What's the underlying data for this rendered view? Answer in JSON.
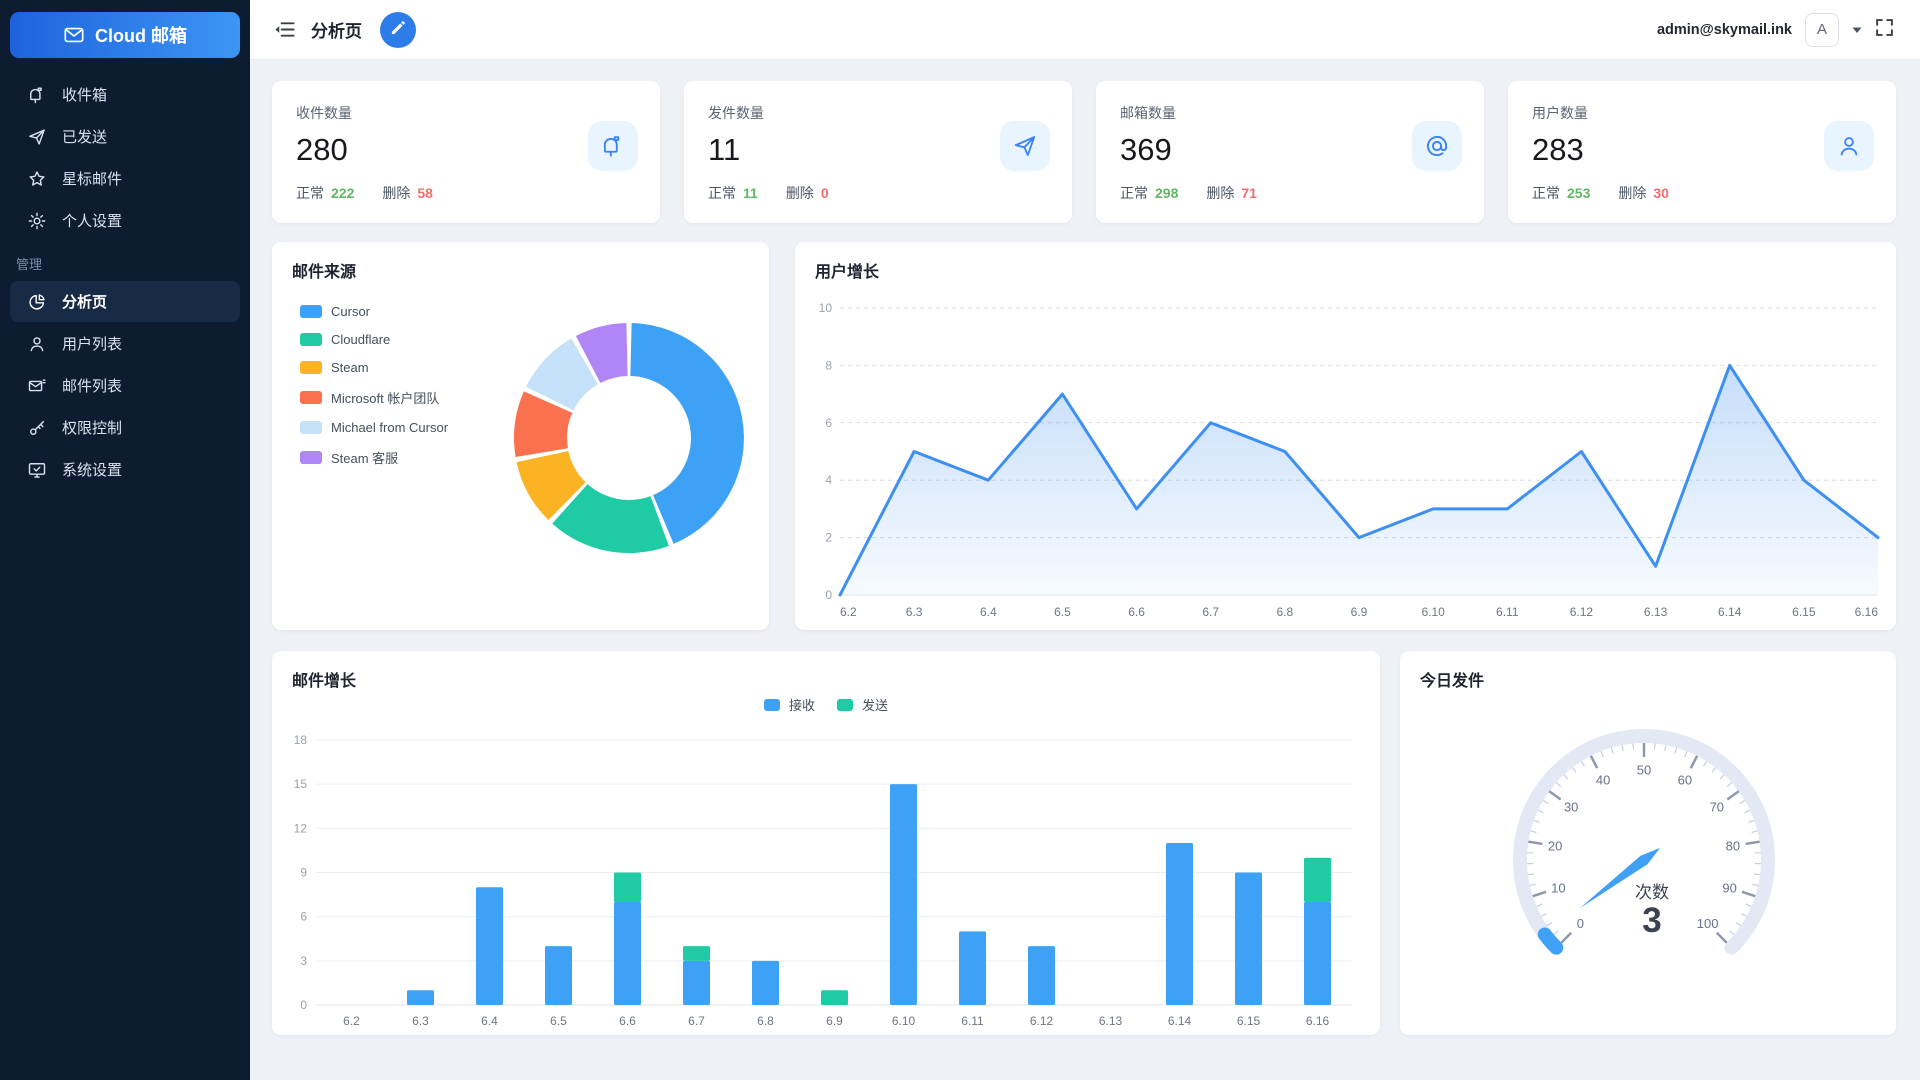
{
  "app": {
    "logo_text": "Cloud 邮箱"
  },
  "header": {
    "title": "分析页",
    "user_email": "admin@skymail.ink",
    "avatar_letter": "A"
  },
  "sidebar": {
    "items": [
      {
        "name": "inbox",
        "icon": "mailbox",
        "label": "收件箱"
      },
      {
        "name": "sent",
        "icon": "send",
        "label": "已发送"
      },
      {
        "name": "starred",
        "icon": "star",
        "label": "星标邮件"
      },
      {
        "name": "profile",
        "icon": "gear",
        "label": "个人设置"
      }
    ],
    "section_label": "管理",
    "admin_items": [
      {
        "name": "analytics",
        "icon": "pie",
        "label": "分析页",
        "active": true
      },
      {
        "name": "users",
        "icon": "user",
        "label": "用户列表"
      },
      {
        "name": "mail-list",
        "icon": "mail-list",
        "label": "邮件列表"
      },
      {
        "name": "permissions",
        "icon": "key",
        "label": "权限控制"
      },
      {
        "name": "system",
        "icon": "monitor",
        "label": "系统设置"
      }
    ]
  },
  "stats": {
    "normal_label": "正常",
    "deleted_label": "删除",
    "cards": [
      {
        "title": "收件数量",
        "value": "280",
        "normal": "222",
        "deleted": "58",
        "icon": "mailbox"
      },
      {
        "title": "发件数量",
        "value": "11",
        "normal": "11",
        "deleted": "0",
        "icon": "send"
      },
      {
        "title": "邮箱数量",
        "value": "369",
        "normal": "298",
        "deleted": "71",
        "icon": "at"
      },
      {
        "title": "用户数量",
        "value": "283",
        "normal": "253",
        "deleted": "30",
        "icon": "user"
      }
    ]
  },
  "colors": {
    "accent": "#2D7CE9",
    "stat_green": "#5FB762",
    "stat_red": "#F56C6C",
    "line_blue": "#3E8FF2",
    "bar_blue": "#3DA2F5",
    "bar_green": "#1ECBA4",
    "gauge_blue": "#3FA0F5",
    "gauge_track": "#E3E8F5"
  },
  "chart_data": [
    {
      "type": "pie",
      "title": "邮件来源",
      "donut": true,
      "legend_position": "left",
      "labels": [
        "Cursor",
        "Cloudflare",
        "Steam",
        "Microsoft 帐户团队",
        "Michael from Cursor",
        "Steam 客服"
      ],
      "values": [
        44,
        18,
        10,
        10,
        10,
        8
      ],
      "values_note": "approx percent of ring",
      "colors": [
        "#3DA2F5",
        "#1ECBA4",
        "#FBB324",
        "#F9714E",
        "#C5E1F9",
        "#B086F6"
      ]
    },
    {
      "type": "area",
      "title": "用户增长",
      "x": [
        "6.2",
        "6.3",
        "6.4",
        "6.5",
        "6.6",
        "6.7",
        "6.8",
        "6.9",
        "6.10",
        "6.11",
        "6.12",
        "6.13",
        "6.14",
        "6.15",
        "6.16"
      ],
      "values": [
        0,
        5,
        4,
        7,
        3,
        6,
        5,
        2,
        3,
        3,
        5,
        1,
        8,
        4,
        2
      ],
      "ylim": [
        0,
        10
      ],
      "yticks": [
        0,
        2,
        4,
        6,
        8,
        10
      ],
      "grid": "dashed",
      "line_color": "#3E8FF2"
    },
    {
      "type": "bar",
      "title": "邮件增长",
      "stacked": true,
      "legend_position": "top-center",
      "categories": [
        "6.2",
        "6.3",
        "6.4",
        "6.5",
        "6.6",
        "6.7",
        "6.8",
        "6.9",
        "6.10",
        "6.11",
        "6.12",
        "6.13",
        "6.14",
        "6.15",
        "6.16"
      ],
      "series": [
        {
          "name": "接收",
          "color": "#3DA2F5",
          "values": [
            0,
            1,
            8,
            4,
            7,
            3,
            3,
            0,
            15,
            5,
            4,
            0,
            11,
            9,
            7
          ]
        },
        {
          "name": "发送",
          "color": "#1ECBA4",
          "values": [
            0,
            0,
            0,
            0,
            2,
            1,
            0,
            1,
            0,
            0,
            0,
            0,
            0,
            0,
            3
          ]
        }
      ],
      "ylim": [
        0,
        18
      ],
      "yticks": [
        0,
        3,
        6,
        9,
        12,
        15,
        18
      ],
      "grid": "solid"
    },
    {
      "type": "gauge",
      "title": "今日发件",
      "label": "次数",
      "value": 3,
      "min": 0,
      "max": 100,
      "tick_labels": [
        0,
        10,
        20,
        30,
        40,
        50,
        60,
        70,
        80,
        90,
        100
      ],
      "start_angle": 225,
      "end_angle": -45
    }
  ]
}
